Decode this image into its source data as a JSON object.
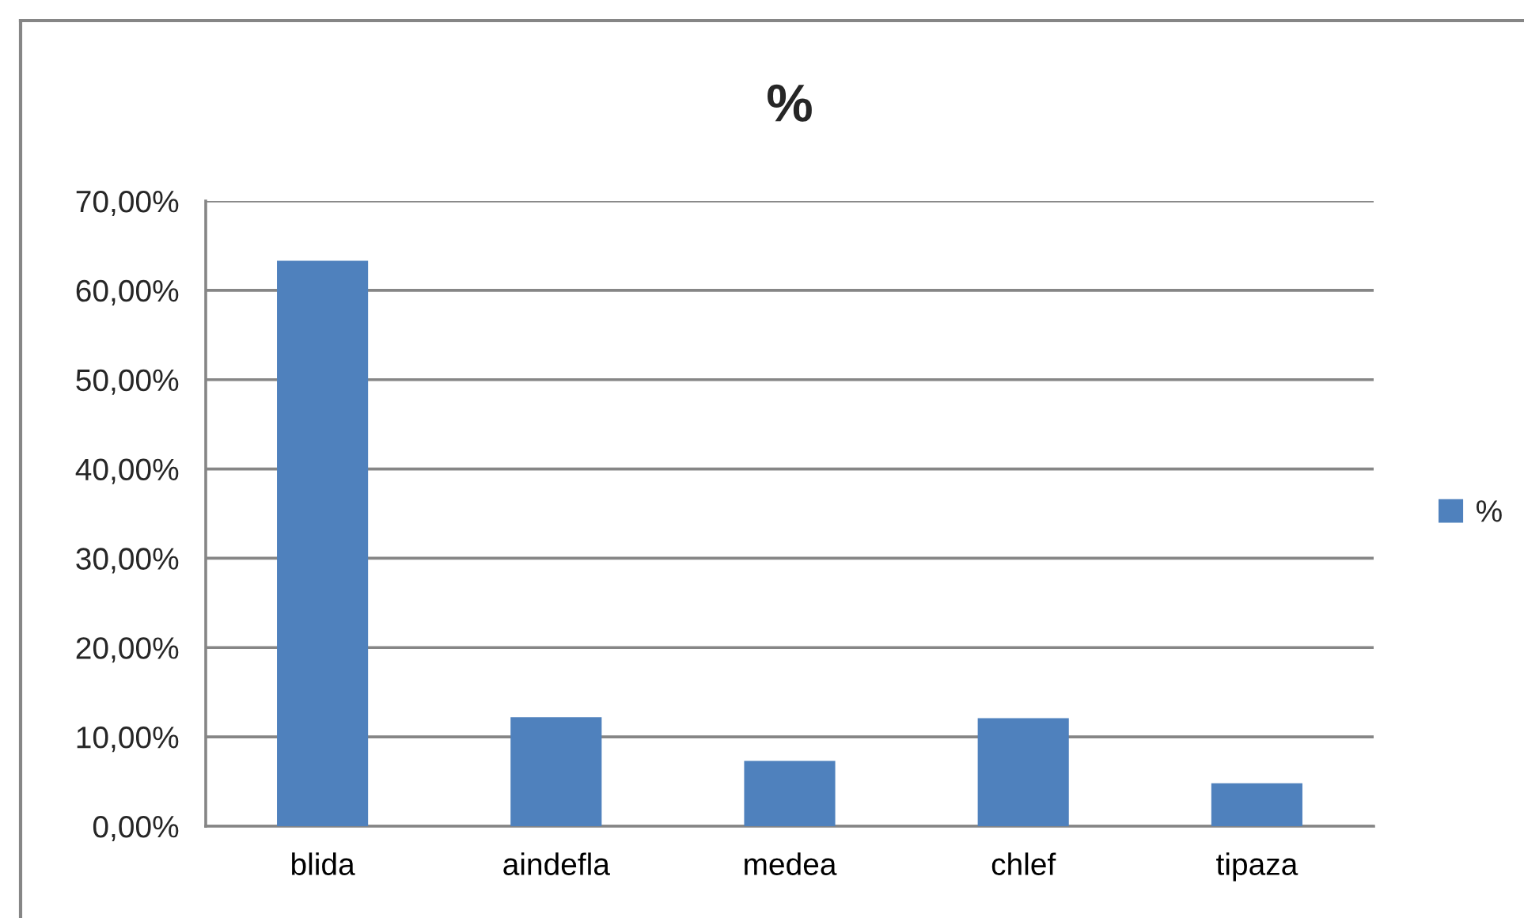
{
  "chart_data": {
    "type": "bar",
    "title": "%",
    "categories": [
      "blida",
      "aindefla",
      "medea",
      "chlef",
      "tipaza"
    ],
    "series": [
      {
        "name": "%",
        "color": "#4f81bd",
        "values": [
          63.3,
          12.2,
          7.3,
          12.1,
          4.8
        ]
      }
    ],
    "ylim": [
      0,
      70
    ],
    "yticks": [
      {
        "value": 0,
        "label": "0,00%"
      },
      {
        "value": 10,
        "label": "10,00%"
      },
      {
        "value": 20,
        "label": "20,00%"
      },
      {
        "value": 30,
        "label": "30,00%"
      },
      {
        "value": 40,
        "label": "40,00%"
      },
      {
        "value": 50,
        "label": "50,00%"
      },
      {
        "value": 60,
        "label": "60,00%"
      },
      {
        "value": 70,
        "label": "70,00%"
      }
    ],
    "grid": "y",
    "legend": "right"
  }
}
